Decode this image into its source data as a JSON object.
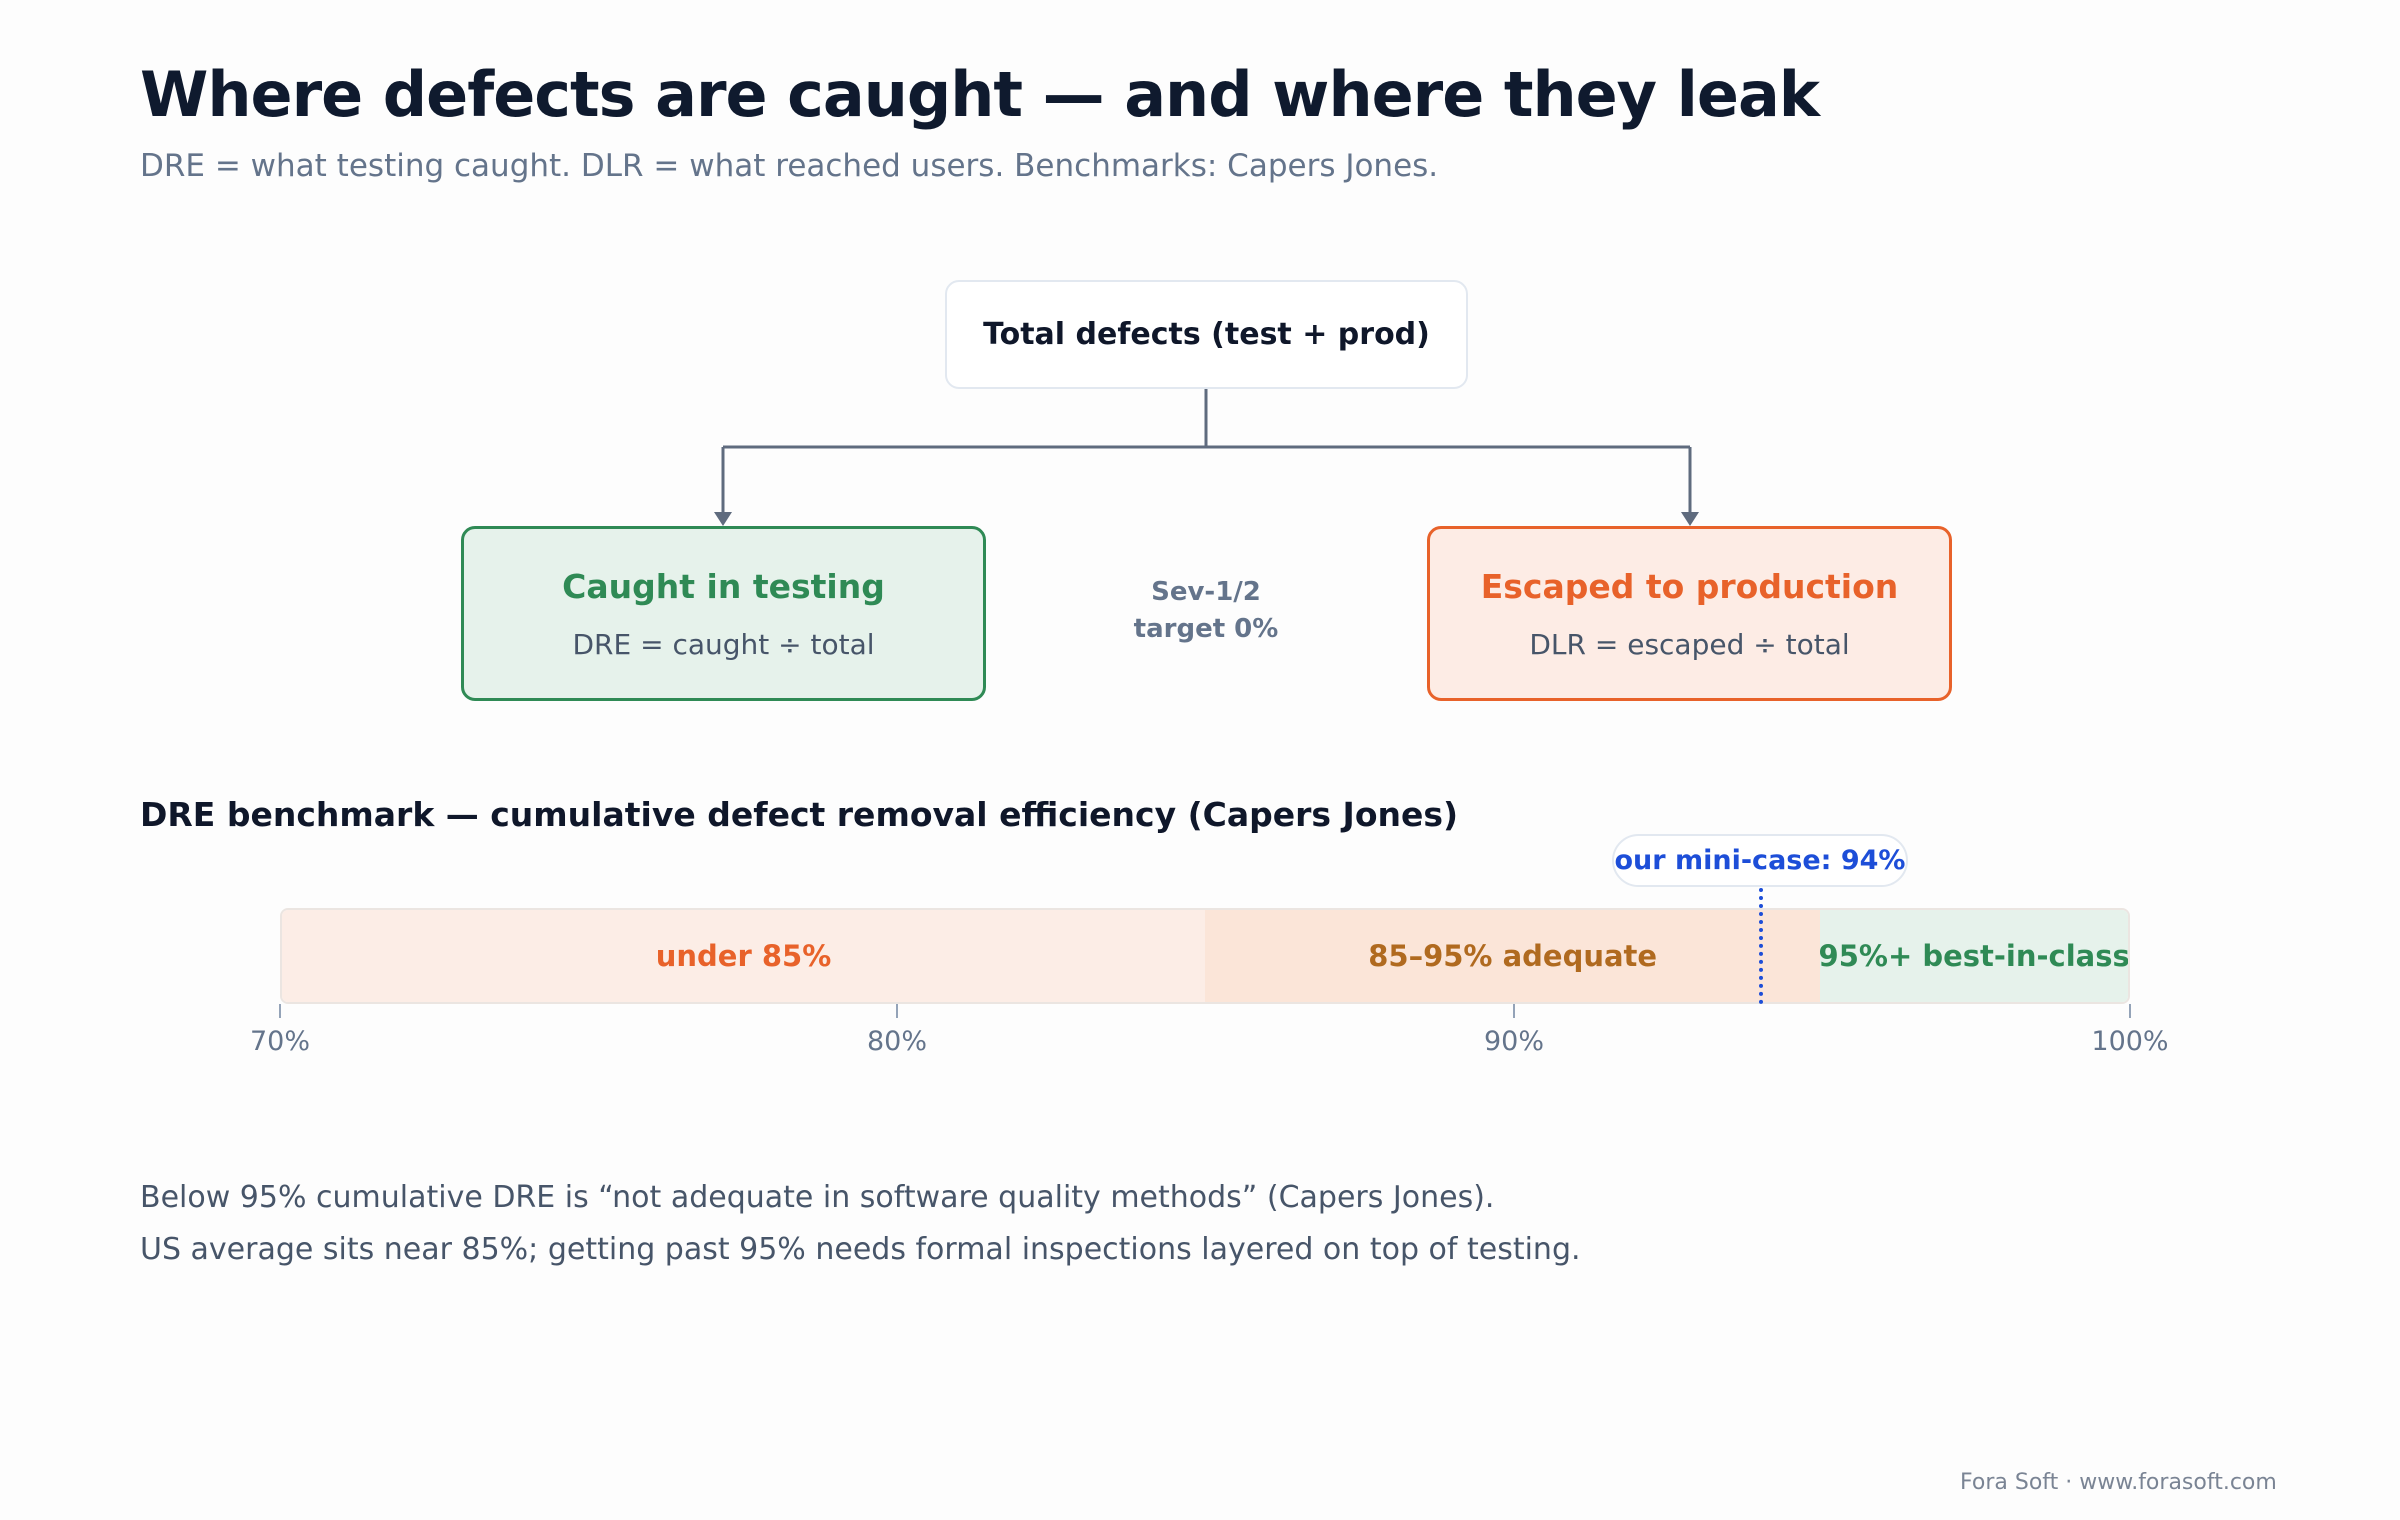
{
  "title": "Where defects are caught — and where they leak",
  "subtitle": "DRE = what testing caught. DLR = what reached users. Benchmarks: Capers Jones.",
  "tree": {
    "root": "Total defects (test + prod)",
    "caught": {
      "title": "Caught in testing",
      "formula": "DRE = caught ÷ total"
    },
    "escaped": {
      "title": "Escaped to production",
      "formula": "DLR = escaped ÷ total"
    },
    "note": [
      "Sev-1/2",
      "target 0%"
    ]
  },
  "benchmark": {
    "title": "DRE benchmark — cumulative defect removal efficiency (Capers Jones)",
    "scale_min": 70,
    "scale_max": 100,
    "bands": [
      {
        "label": "under 85%",
        "from": 70,
        "to": 85,
        "color": "#e8622a"
      },
      {
        "label": "85–95% adequate",
        "from": 85,
        "to": 95,
        "color": "#b06a1f"
      },
      {
        "label": "95%+ best-in-class",
        "from": 95,
        "to": 100,
        "color": "#2f8a55"
      }
    ],
    "marker": {
      "label": "our mini-case: 94%",
      "value": 94,
      "color": "#1d4ed8"
    },
    "ticks": [
      "70%",
      "80%",
      "90%",
      "100%"
    ]
  },
  "notes": [
    "Below 95% cumulative DRE is “not adequate in software quality methods” (Capers Jones).",
    "US average sits near 85%; getting past 95% needs formal inspections layered on top of testing."
  ],
  "footer": "Fora Soft · www.forasoft.com"
}
